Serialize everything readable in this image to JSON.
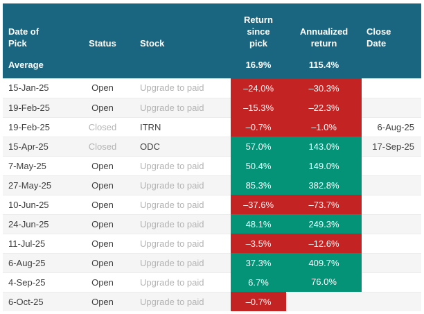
{
  "colors": {
    "header_bg": "#1a657f",
    "negative": "#c42323",
    "positive": "#049377",
    "row_alt": "#f5f5f5",
    "text_dark": "#3e3e3e",
    "text_muted": "#b3b3b3",
    "separator": "#ececec"
  },
  "table": {
    "header": {
      "columns": [
        {
          "label": "Date of\nPick"
        },
        {
          "label": "Status"
        },
        {
          "label": "Stock"
        },
        {
          "label": "Return\nsince\npick"
        },
        {
          "label": "Annualized\nreturn"
        },
        {
          "label": "Close\nDate"
        }
      ],
      "average": {
        "label": "Average",
        "return_since_pick": "16.9%",
        "annualized_return": "115.4%"
      }
    },
    "rows": [
      {
        "date": "15-Jan-25",
        "status": "Open",
        "status_muted": "false",
        "stock": "Upgrade to paid",
        "stock_muted": "true",
        "return_since_pick": "–24.0%",
        "tone_since": "red",
        "annualized_return": "–30.3%",
        "tone_annualized": "red",
        "close_date": ""
      },
      {
        "date": "19-Feb-25",
        "status": "Open",
        "status_muted": "false",
        "stock": "Upgrade to paid",
        "stock_muted": "true",
        "return_since_pick": "–15.3%",
        "tone_since": "red",
        "annualized_return": "–22.3%",
        "tone_annualized": "red",
        "close_date": ""
      },
      {
        "date": "19-Feb-25",
        "status": "Closed",
        "status_muted": "true",
        "stock": "ITRN",
        "stock_muted": "false",
        "return_since_pick": "–0.7%",
        "tone_since": "red",
        "annualized_return": "–1.0%",
        "tone_annualized": "red",
        "close_date": "6-Aug-25"
      },
      {
        "date": "15-Apr-25",
        "status": "Closed",
        "status_muted": "true",
        "stock": "ODC",
        "stock_muted": "false",
        "return_since_pick": "57.0%",
        "tone_since": "green",
        "annualized_return": "143.0%",
        "tone_annualized": "green",
        "close_date": "17-Sep-25"
      },
      {
        "date": "7-May-25",
        "status": "Open",
        "status_muted": "false",
        "stock": "Upgrade to paid",
        "stock_muted": "true",
        "return_since_pick": "50.4%",
        "tone_since": "green",
        "annualized_return": "149.0%",
        "tone_annualized": "green",
        "close_date": ""
      },
      {
        "date": "27-May-25",
        "status": "Open",
        "status_muted": "false",
        "stock": "Upgrade to paid",
        "stock_muted": "true",
        "return_since_pick": "85.3%",
        "tone_since": "green",
        "annualized_return": "382.8%",
        "tone_annualized": "green",
        "close_date": ""
      },
      {
        "date": "10-Jun-25",
        "status": "Open",
        "status_muted": "false",
        "stock": "Upgrade to paid",
        "stock_muted": "true",
        "return_since_pick": "–37.6%",
        "tone_since": "red",
        "annualized_return": "–73.7%",
        "tone_annualized": "red",
        "close_date": ""
      },
      {
        "date": "24-Jun-25",
        "status": "Open",
        "status_muted": "false",
        "stock": "Upgrade to paid",
        "stock_muted": "true",
        "return_since_pick": "48.1%",
        "tone_since": "green",
        "annualized_return": "249.3%",
        "tone_annualized": "green",
        "close_date": ""
      },
      {
        "date": "11-Jul-25",
        "status": "Open",
        "status_muted": "false",
        "stock": "Upgrade to paid",
        "stock_muted": "true",
        "return_since_pick": "–3.5%",
        "tone_since": "red",
        "annualized_return": "–12.6%",
        "tone_annualized": "red",
        "close_date": ""
      },
      {
        "date": "6-Aug-25",
        "status": "Open",
        "status_muted": "false",
        "stock": "Upgrade to paid",
        "stock_muted": "true",
        "return_since_pick": "37.3%",
        "tone_since": "green",
        "annualized_return": "409.7%",
        "tone_annualized": "green",
        "close_date": ""
      },
      {
        "date": "4-Sep-25",
        "status": "Open",
        "status_muted": "false",
        "stock": "Upgrade to paid",
        "stock_muted": "true",
        "return_since_pick": "6.7%",
        "tone_since": "green",
        "annualized_return": "76.0%",
        "tone_annualized": "green",
        "close_date": ""
      },
      {
        "date": "6-Oct-25",
        "status": "Open",
        "status_muted": "false",
        "stock": "Upgrade to paid",
        "stock_muted": "true",
        "return_since_pick": "–0.7%",
        "tone_since": "red",
        "annualized_return": "",
        "tone_annualized": "none",
        "close_date": ""
      }
    ]
  }
}
